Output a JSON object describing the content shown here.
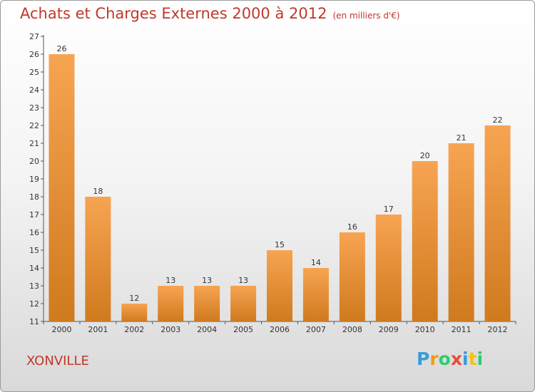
{
  "title": "Achats et Charges Externes 2000 à 2012",
  "unit": "(en milliers d'€)",
  "commune": "XONVILLE",
  "logo": {
    "letters": [
      "P",
      "r",
      "o",
      "x",
      "i",
      "t",
      "i"
    ],
    "colors": [
      "#3a9bd8",
      "#f39c12",
      "#2ecc71",
      "#e74c3c",
      "#3a9bd8",
      "#f1c40f",
      "#2ecc71"
    ]
  },
  "colors": {
    "title": "#c0392b",
    "bar_light": "#f7a452",
    "bar_dark": "#d07a1e"
  },
  "chart_data": {
    "type": "bar",
    "categories": [
      "2000",
      "2001",
      "2002",
      "2003",
      "2004",
      "2005",
      "2006",
      "2007",
      "2008",
      "2009",
      "2010",
      "2011",
      "2012"
    ],
    "values": [
      26,
      18,
      12,
      13,
      13,
      13,
      15,
      14,
      16,
      17,
      20,
      21,
      22
    ],
    "data_labels": [
      "26",
      "18",
      "12",
      "13",
      "13",
      "13",
      "15",
      "14",
      "16",
      "17",
      "20",
      "21",
      "22"
    ],
    "ylim": [
      11,
      27
    ],
    "yticks": [
      "11",
      "12",
      "13",
      "14",
      "15",
      "16",
      "17",
      "18",
      "19",
      "20",
      "21",
      "22",
      "23",
      "24",
      "25",
      "26",
      "27"
    ],
    "grid": false,
    "legend": "none"
  }
}
